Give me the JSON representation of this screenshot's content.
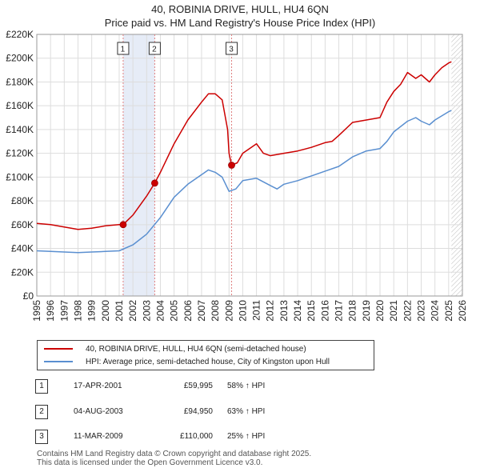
{
  "title_line1": "40, ROBINIA DRIVE, HULL, HU4 6QN",
  "title_line2": "Price paid vs. HM Land Registry's House Price Index (HPI)",
  "colors": {
    "property_line": "#cc0000",
    "hpi_line": "#5a8fd0",
    "band_fill": "#e6ecf7",
    "grid": "#dddddd",
    "marker_line": "#e08080"
  },
  "chart_data": {
    "type": "line",
    "title": "Price paid vs. HM Land Registry's House Price Index (HPI)",
    "xlabel": "",
    "ylabel": "",
    "xlim": [
      1995,
      2026
    ],
    "ylim": [
      0,
      220000
    ],
    "x_ticks": [
      1995,
      1996,
      1997,
      1998,
      1999,
      2000,
      2001,
      2002,
      2003,
      2004,
      2005,
      2006,
      2007,
      2008,
      2009,
      2010,
      2011,
      2012,
      2013,
      2014,
      2015,
      2016,
      2017,
      2018,
      2019,
      2020,
      2021,
      2022,
      2023,
      2024,
      2025,
      2026
    ],
    "y_ticks": [
      0,
      20000,
      40000,
      60000,
      80000,
      100000,
      120000,
      140000,
      160000,
      180000,
      200000,
      220000
    ],
    "y_tick_labels": [
      "£0",
      "£20K",
      "£40K",
      "£60K",
      "£80K",
      "£100K",
      "£120K",
      "£140K",
      "£160K",
      "£180K",
      "£200K",
      "£220K"
    ],
    "grid": true,
    "series": [
      {
        "name": "40, ROBINIA DRIVE, HULL, HU4 6QN (semi-detached house)",
        "color": "#cc0000",
        "x": [
          1995.0,
          1996.0,
          1997.0,
          1998.0,
          1999.0,
          2000.0,
          2001.0,
          2001.29,
          2002.0,
          2003.0,
          2003.59,
          2004.0,
          2005.0,
          2006.0,
          2007.0,
          2007.5,
          2008.0,
          2008.5,
          2008.9,
          2009.0,
          2009.19,
          2009.6,
          2010.0,
          2011.0,
          2011.5,
          2012.0,
          2013.0,
          2014.0,
          2015.0,
          2016.0,
          2016.5,
          2017.0,
          2018.0,
          2019.0,
          2020.0,
          2020.5,
          2021.0,
          2021.5,
          2022.0,
          2022.6,
          2023.0,
          2023.6,
          2024.0,
          2024.5,
          2025.0,
          2025.2
        ],
        "y": [
          61000,
          60000,
          58000,
          56000,
          57000,
          59000,
          60000,
          59995,
          68000,
          84000,
          94950,
          104000,
          128000,
          148000,
          163000,
          170000,
          170000,
          165000,
          140000,
          120000,
          110000,
          112000,
          120000,
          128000,
          120000,
          118000,
          120000,
          122000,
          125000,
          129000,
          130000,
          135000,
          146000,
          148000,
          150000,
          163000,
          172000,
          178000,
          188000,
          183000,
          186000,
          180000,
          186000,
          192000,
          196000,
          197000
        ]
      },
      {
        "name": "HPI: Average price, semi-detached house, City of Kingston upon Hull",
        "color": "#5a8fd0",
        "x": [
          1995.0,
          1996.0,
          1997.0,
          1998.0,
          1999.0,
          2000.0,
          2001.0,
          2002.0,
          2003.0,
          2004.0,
          2005.0,
          2006.0,
          2007.0,
          2007.5,
          2008.0,
          2008.5,
          2009.0,
          2009.5,
          2010.0,
          2011.0,
          2012.0,
          2012.5,
          2013.0,
          2014.0,
          2015.0,
          2016.0,
          2017.0,
          2018.0,
          2019.0,
          2020.0,
          2020.5,
          2021.0,
          2022.0,
          2022.6,
          2023.0,
          2023.6,
          2024.0,
          2025.0,
          2025.2
        ],
        "y": [
          38000,
          37500,
          37000,
          36500,
          37000,
          37500,
          38000,
          43000,
          52000,
          66000,
          83000,
          94000,
          102000,
          106000,
          104000,
          100000,
          88000,
          90000,
          97000,
          99000,
          93000,
          90000,
          94000,
          97000,
          101000,
          105000,
          109000,
          117000,
          122000,
          124000,
          130000,
          138000,
          147000,
          150000,
          147000,
          144000,
          148000,
          155000,
          156000
        ]
      }
    ],
    "sales": [
      {
        "label": "1",
        "x": 2001.29,
        "y": 59995
      },
      {
        "label": "2",
        "x": 2003.59,
        "y": 94950
      },
      {
        "label": "3",
        "x": 2009.19,
        "y": 110000
      }
    ]
  },
  "legend": {
    "property_label": "40, ROBINIA DRIVE, HULL, HU4 6QN (semi-detached house)",
    "hpi_label": "HPI: Average price, semi-detached house, City of Kingston upon Hull"
  },
  "transactions": [
    {
      "num": "1",
      "date": "17-APR-2001",
      "price": "£59,995",
      "hpi": "58% ↑ HPI"
    },
    {
      "num": "2",
      "date": "04-AUG-2003",
      "price": "£94,950",
      "hpi": "63% ↑ HPI"
    },
    {
      "num": "3",
      "date": "11-MAR-2009",
      "price": "£110,000",
      "hpi": "25% ↑ HPI"
    }
  ],
  "footer_line1": "Contains HM Land Registry data © Crown copyright and database right 2025.",
  "footer_line2": "This data is licensed under the Open Government Licence v3.0."
}
